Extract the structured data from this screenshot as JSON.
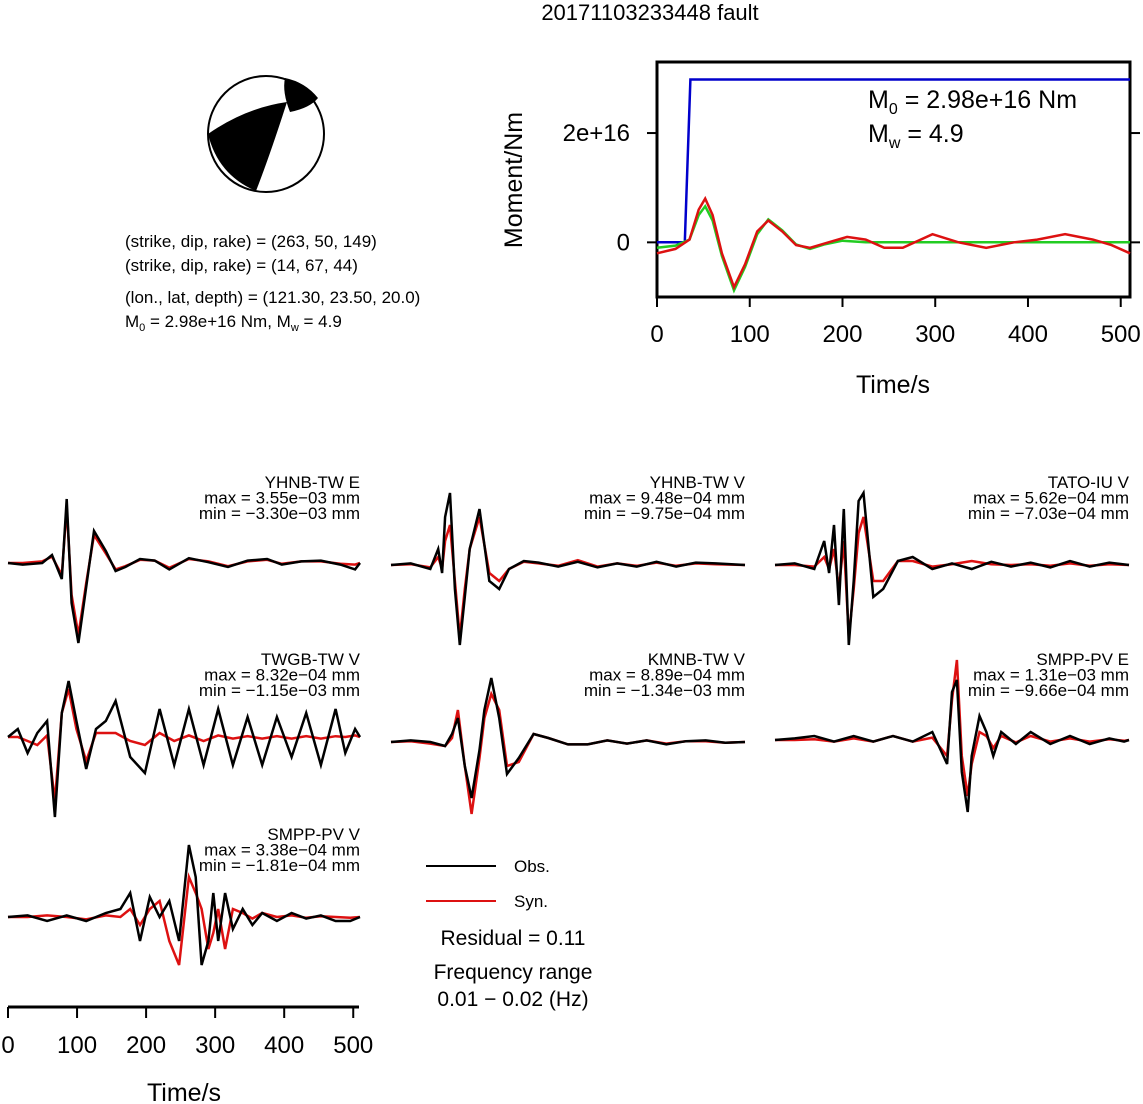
{
  "title": "20171103233448 fault",
  "focal_mechanism": {
    "plane1": "(strike, dip, rake) = (263, 50, 149)",
    "plane2": "(strike, dip, rake) = (14, 67, 44)",
    "location": "(lon., lat, depth) = (121.30, 23.50, 20.0)",
    "m0_text": "= 2.98e+16 Nm, M",
    "mw_text": "= 4.9"
  },
  "source_plot": {
    "ylabel": "Moment/Nm",
    "xlabel": "Time/s",
    "m0_value": "= 2.98e+16 Nm",
    "mw_value": "= 4.9"
  },
  "waveform_axis": {
    "xlabel": "Time/s"
  },
  "legend": {
    "obs": "Obs.",
    "syn": "Syn."
  },
  "residual": "Residual = 0.11",
  "frequency_label": "Frequency range",
  "frequency_value": "0.01 − 0.02 (Hz)",
  "colors": {
    "obs": "#000000",
    "syn": "#dd1111",
    "moment": "#0000cc",
    "rate_fit": "#22cc22"
  },
  "chart_data": [
    {
      "type": "line",
      "xlabel": "Time/s",
      "ylabel": "Moment/Nm",
      "xlim": [
        0,
        510
      ],
      "ylim": [
        -1e+16,
        3.3e+16
      ],
      "x_ticks": [
        0,
        100,
        200,
        300,
        400,
        500
      ],
      "y_ticks": [
        {
          "v": 0,
          "label": "0"
        },
        {
          "v": 2e+16,
          "label": "2e+16"
        }
      ],
      "rate_scale": 1000000000000000.0,
      "series": [
        {
          "role": "moment",
          "color": "#0000cc",
          "x": [
            0,
            30,
            33,
            36,
            510
          ],
          "y": [
            0,
            0,
            1.5e+16,
            2.98e+16,
            2.98e+16
          ]
        },
        {
          "role": "rate_a",
          "color": "#22cc22",
          "x": [
            0,
            20,
            35,
            45,
            52,
            60,
            70,
            83,
            95,
            108,
            120,
            135,
            150,
            165,
            180,
            200,
            225,
            250,
            300,
            350,
            400,
            450,
            510
          ],
          "y": [
            -1,
            -0.6,
            0.5,
            5,
            6.6,
            4,
            -2.5,
            -8.8,
            -4.5,
            1.5,
            4.2,
            2.2,
            -0.4,
            -1.2,
            -0.4,
            0.3,
            0,
            0,
            0,
            0,
            0,
            0,
            0
          ]
        },
        {
          "role": "rate_b",
          "color": "#dd1111",
          "x": [
            0,
            20,
            35,
            45,
            52,
            60,
            70,
            83,
            95,
            108,
            120,
            135,
            150,
            165,
            185,
            205,
            225,
            245,
            265,
            297,
            325,
            355,
            385,
            410,
            440,
            470,
            490,
            510
          ],
          "y": [
            -2,
            -1.2,
            0.5,
            6,
            8,
            5,
            -2,
            -8.2,
            -4,
            2,
            4,
            2,
            -0.5,
            -1,
            0,
            1,
            0.5,
            -1,
            -1,
            1.5,
            0,
            -1,
            0,
            0.5,
            1.5,
            0.5,
            -0.5,
            -2
          ]
        }
      ]
    },
    {
      "type": "line",
      "station": "YHNB-TW E",
      "max": "max = 3.55e−03 mm",
      "min": "min = −3.30e−03 mm",
      "series": [
        {
          "name": "Obs.",
          "x": [
            0,
            15,
            35,
            45,
            55,
            60,
            65,
            72,
            80,
            88,
            100,
            110,
            120,
            135,
            150,
            165,
            185,
            205,
            225,
            245,
            265,
            280,
            300,
            320,
            340,
            355,
            360
          ],
          "y": [
            0,
            -0.02,
            0,
            0.1,
            -0.2,
            0.8,
            -0.5,
            -1,
            -0.3,
            0.4,
            0.15,
            -0.1,
            -0.05,
            0.05,
            0.03,
            -0.08,
            0.06,
            0.01,
            -0.05,
            0.03,
            0.05,
            -0.02,
            0.02,
            0.03,
            -0.02,
            -0.08,
            0
          ]
        },
        {
          "name": "Syn.",
          "x": [
            0,
            15,
            35,
            45,
            55,
            60,
            65,
            72,
            80,
            88,
            100,
            110,
            120,
            135,
            150,
            165,
            185,
            205,
            225,
            245,
            265,
            280,
            300,
            320,
            340,
            355,
            360
          ],
          "y": [
            0,
            0,
            0.02,
            0.08,
            -0.15,
            0.7,
            -0.4,
            -0.9,
            -0.25,
            0.35,
            0.12,
            -0.08,
            -0.04,
            0.04,
            0.03,
            -0.06,
            0.05,
            0.02,
            -0.04,
            0.02,
            0.04,
            -0.01,
            0.02,
            0.02,
            -0.01,
            -0.02,
            0
          ]
        }
      ]
    },
    {
      "type": "line",
      "station": "YHNB-TW V",
      "max": "max = 9.48e−04 mm",
      "min": "min = −9.75e−04 mm",
      "series": [
        {
          "name": "Obs.",
          "x": [
            0,
            20,
            40,
            48,
            52,
            55,
            60,
            65,
            70,
            75,
            80,
            90,
            100,
            110,
            120,
            135,
            150,
            170,
            190,
            210,
            230,
            250,
            270,
            290,
            310,
            330,
            360
          ],
          "y": [
            0,
            0.02,
            -0.05,
            0.2,
            -0.1,
            0.6,
            0.9,
            -0.3,
            -1,
            -0.4,
            0.2,
            0.7,
            -0.2,
            -0.3,
            -0.05,
            0.05,
            0.03,
            -0.02,
            0.04,
            -0.03,
            0.02,
            -0.02,
            0.04,
            -0.02,
            0.03,
            0.02,
            0
          ]
        },
        {
          "name": "Syn.",
          "x": [
            0,
            20,
            40,
            48,
            52,
            55,
            60,
            65,
            70,
            75,
            80,
            90,
            100,
            110,
            120,
            135,
            150,
            170,
            190,
            210,
            230,
            250,
            270,
            290,
            310,
            330,
            360
          ],
          "y": [
            0,
            0.01,
            -0.03,
            0.1,
            -0.05,
            0.3,
            0.5,
            -0.2,
            -0.9,
            -0.3,
            0.2,
            0.6,
            -0.1,
            -0.2,
            -0.05,
            0.04,
            0.02,
            -0.01,
            0.06,
            -0.02,
            0.02,
            -0.01,
            0.03,
            -0.01,
            0.02,
            0.01,
            0
          ]
        }
      ]
    },
    {
      "type": "line",
      "station": "TATO-IU V",
      "max": "max = 5.62e−04 mm",
      "min": "min = −7.03e−04 mm",
      "series": [
        {
          "name": "Obs.",
          "x": [
            0,
            20,
            40,
            50,
            55,
            60,
            65,
            70,
            75,
            80,
            85,
            90,
            100,
            110,
            125,
            140,
            160,
            180,
            200,
            220,
            240,
            260,
            280,
            300,
            320,
            340,
            360
          ],
          "y": [
            0,
            0.02,
            -0.05,
            0.3,
            -0.1,
            0.5,
            -0.5,
            0.7,
            -1,
            -0.2,
            0.8,
            0.9,
            -0.4,
            -0.3,
            0.05,
            0.1,
            -0.05,
            0.02,
            -0.05,
            0.04,
            -0.02,
            0.03,
            -0.03,
            0.05,
            -0.02,
            0.03,
            0
          ]
        },
        {
          "name": "Syn.",
          "x": [
            0,
            20,
            40,
            50,
            55,
            60,
            65,
            70,
            75,
            80,
            85,
            90,
            100,
            110,
            125,
            140,
            160,
            180,
            200,
            220,
            240,
            260,
            280,
            300,
            320,
            340,
            360
          ],
          "y": [
            0,
            0,
            -0.02,
            0.1,
            -0.05,
            0.2,
            -0.3,
            0.3,
            -0.9,
            -0.3,
            0.4,
            0.6,
            -0.2,
            -0.2,
            0.05,
            0.05,
            -0.02,
            0.01,
            0.05,
            0.01,
            0,
            0.01,
            -0.01,
            0.02,
            -0.01,
            0.01,
            0
          ]
        }
      ]
    },
    {
      "type": "line",
      "station": "TWGB-TW V",
      "max": "max = 8.32e−04 mm",
      "min": "min = −1.15e−03 mm",
      "series": [
        {
          "name": "Obs.",
          "x": [
            0,
            10,
            20,
            30,
            40,
            48,
            55,
            62,
            70,
            80,
            90,
            100,
            110,
            125,
            140,
            155,
            170,
            185,
            200,
            215,
            230,
            245,
            260,
            275,
            290,
            305,
            320,
            335,
            345,
            355,
            360
          ],
          "y": [
            0,
            0.1,
            -0.2,
            0.05,
            0.2,
            -1,
            0.3,
            0.7,
            0.2,
            -0.4,
            0.1,
            0.2,
            0.45,
            -0.25,
            -0.45,
            0.35,
            -0.35,
            0.35,
            -0.35,
            0.35,
            -0.35,
            0.25,
            -0.35,
            0.25,
            -0.25,
            0.3,
            -0.35,
            0.35,
            -0.2,
            0.1,
            0
          ]
        },
        {
          "name": "Syn.",
          "x": [
            0,
            10,
            20,
            30,
            40,
            48,
            55,
            62,
            70,
            80,
            90,
            100,
            110,
            125,
            140,
            155,
            170,
            185,
            200,
            215,
            230,
            245,
            260,
            275,
            290,
            305,
            320,
            335,
            345,
            355,
            360
          ],
          "y": [
            0,
            0,
            -0.05,
            -0.1,
            0.02,
            -0.8,
            0.3,
            0.6,
            0.1,
            -0.3,
            0.05,
            0.05,
            0.05,
            -0.05,
            -0.1,
            0.05,
            -0.05,
            0.02,
            -0.05,
            0.02,
            -0.02,
            0.01,
            -0.02,
            0.01,
            -0.02,
            0.01,
            -0.02,
            0.01,
            0,
            0.02,
            0
          ]
        }
      ]
    },
    {
      "type": "line",
      "station": "KMNB-TW V",
      "max": "max = 8.89e−04 mm",
      "min": "min = −1.34e−03 mm",
      "series": [
        {
          "name": "Obs.",
          "x": [
            0,
            20,
            40,
            55,
            62,
            68,
            75,
            82,
            90,
            95,
            102,
            110,
            118,
            130,
            145,
            160,
            180,
            200,
            220,
            240,
            260,
            280,
            300,
            320,
            340,
            360
          ],
          "y": [
            0,
            0.02,
            0,
            -0.05,
            0.1,
            0.3,
            -0.3,
            -0.7,
            -0.1,
            0.4,
            0.8,
            0.3,
            -0.4,
            -0.2,
            0.1,
            0.05,
            -0.03,
            -0.03,
            0.02,
            -0.02,
            0.02,
            -0.03,
            0.01,
            0.02,
            -0.01,
            0
          ]
        },
        {
          "name": "Syn.",
          "x": [
            0,
            20,
            40,
            55,
            62,
            68,
            75,
            82,
            90,
            95,
            102,
            110,
            118,
            130,
            145,
            160,
            180,
            200,
            220,
            240,
            260,
            280,
            300,
            320,
            340,
            360
          ],
          "y": [
            0,
            0.01,
            -0.02,
            -0.05,
            0.05,
            0.4,
            -0.3,
            -0.9,
            -0.2,
            0.3,
            0.6,
            0.4,
            -0.3,
            -0.25,
            0.1,
            0.05,
            -0.03,
            -0.03,
            0.02,
            -0.02,
            0.02,
            -0.02,
            0.01,
            0.01,
            -0.01,
            0
          ]
        }
      ]
    },
    {
      "type": "line",
      "station": "SMPP-PV E",
      "max": "max = 1.31e−03 mm",
      "min": "min = −9.66e−04 mm",
      "series": [
        {
          "name": "Obs.",
          "x": [
            0,
            20,
            40,
            60,
            80,
            100,
            120,
            140,
            160,
            175,
            180,
            185,
            190,
            196,
            200,
            208,
            215,
            222,
            230,
            245,
            260,
            280,
            300,
            320,
            340,
            355,
            360
          ],
          "y": [
            0,
            0.02,
            0.05,
            -0.02,
            0.05,
            -0.02,
            0.05,
            -0.02,
            0.1,
            -0.3,
            0.6,
            0.75,
            -0.4,
            -0.9,
            -0.2,
            0.3,
            0.1,
            -0.2,
            0.1,
            -0.05,
            0.1,
            -0.05,
            0.05,
            -0.05,
            0.02,
            -0.02,
            0
          ]
        },
        {
          "name": "Syn.",
          "x": [
            0,
            20,
            40,
            60,
            80,
            100,
            120,
            140,
            160,
            175,
            180,
            185,
            190,
            196,
            200,
            208,
            215,
            222,
            230,
            245,
            260,
            280,
            300,
            320,
            340,
            355,
            360
          ],
          "y": [
            0,
            0,
            0.01,
            -0.02,
            0.02,
            -0.02,
            0.05,
            -0.02,
            0.03,
            -0.2,
            0.5,
            1,
            -0.2,
            -0.7,
            -0.3,
            0.1,
            0.05,
            -0.1,
            0.05,
            -0.03,
            0.05,
            -0.02,
            0.02,
            -0.02,
            0.01,
            -0.01,
            0
          ]
        }
      ]
    },
    {
      "type": "line",
      "station": "SMPP-PV V",
      "max": "max = 3.38e−04 mm",
      "min": "min = −1.81e−04 mm",
      "series": [
        {
          "name": "Obs.",
          "x": [
            0,
            20,
            40,
            60,
            80,
            100,
            115,
            125,
            135,
            145,
            155,
            165,
            175,
            185,
            192,
            198,
            205,
            210,
            215,
            222,
            230,
            240,
            250,
            260,
            275,
            290,
            305,
            320,
            335,
            350,
            360
          ],
          "y": [
            0,
            0.02,
            -0.05,
            0.02,
            -0.05,
            0.05,
            0.1,
            0.3,
            -0.3,
            0.25,
            0,
            0.2,
            -0.3,
            0.9,
            0.5,
            -0.6,
            -0.3,
            0.3,
            -0.3,
            0.3,
            -0.15,
            0.1,
            -0.1,
            0.05,
            -0.05,
            0.05,
            -0.02,
            0.02,
            -0.05,
            -0.05,
            0
          ]
        },
        {
          "name": "Syn.",
          "x": [
            0,
            20,
            40,
            60,
            80,
            100,
            115,
            125,
            135,
            145,
            155,
            165,
            175,
            185,
            192,
            198,
            205,
            210,
            215,
            222,
            230,
            240,
            250,
            260,
            275,
            290,
            305,
            320,
            335,
            350,
            360
          ],
          "y": [
            0,
            0,
            0.02,
            0,
            -0.03,
            0.02,
            0,
            0.1,
            -0.1,
            0.1,
            0.2,
            -0.3,
            -0.6,
            0.5,
            0.3,
            0.1,
            -0.4,
            -0.2,
            0.1,
            -0.4,
            0.1,
            0.05,
            -0.02,
            0.05,
            0,
            0.02,
            -0.01,
            0.01,
            0,
            -0.01,
            0
          ]
        }
      ]
    }
  ]
}
